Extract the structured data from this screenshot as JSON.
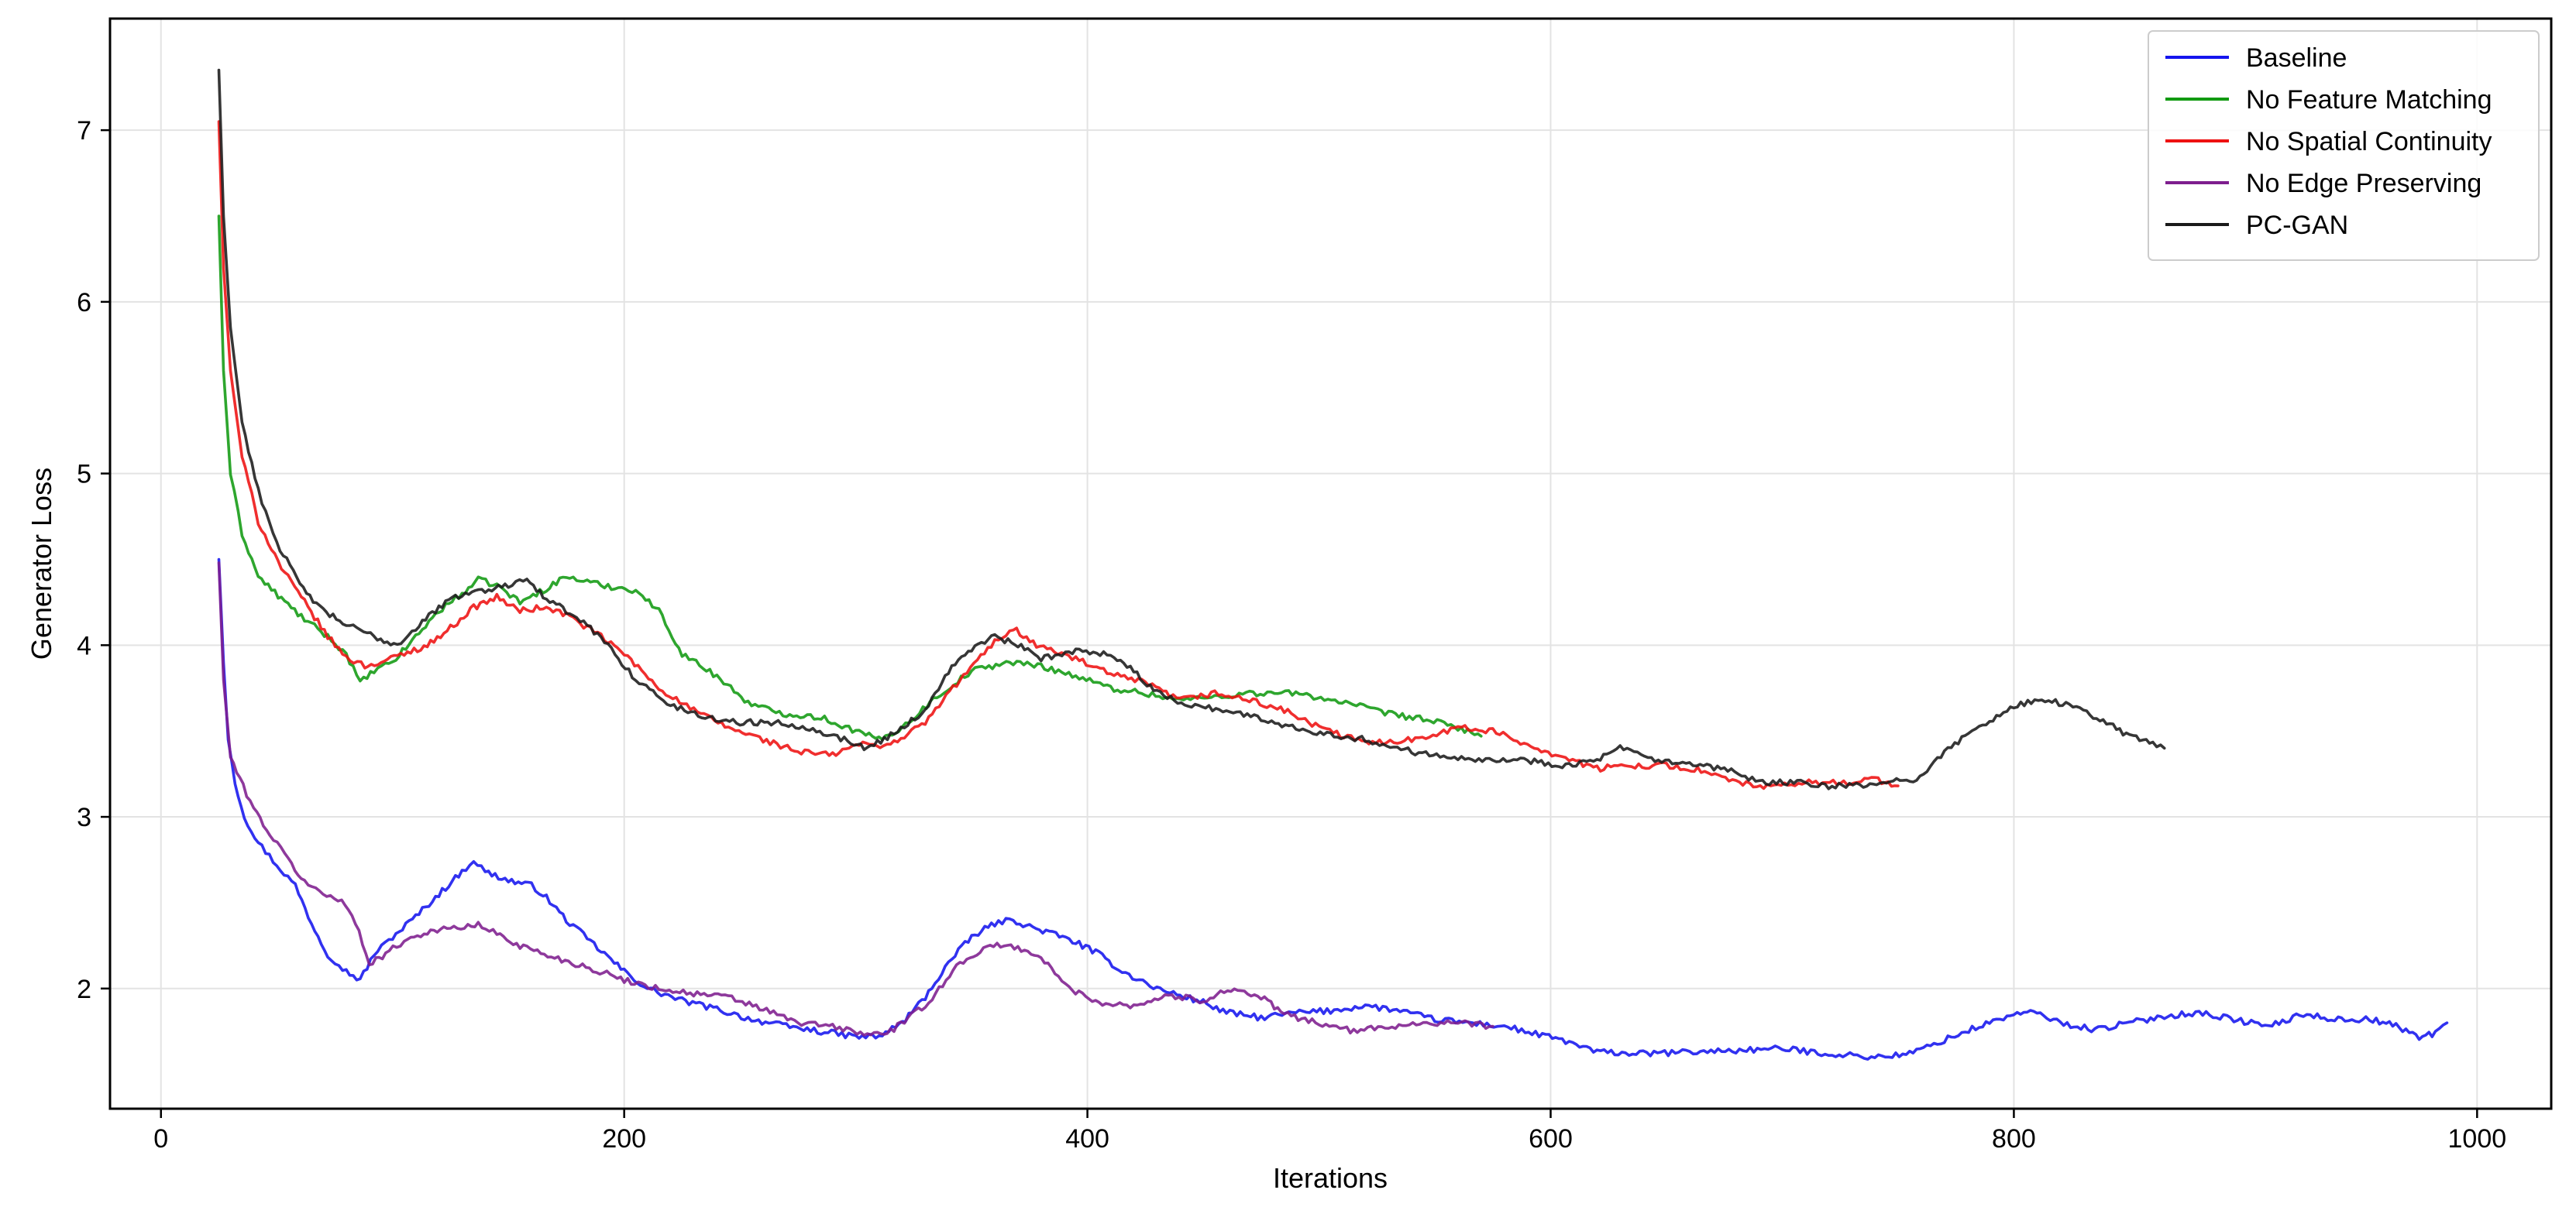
{
  "chart_data": {
    "type": "line",
    "title": "",
    "xlabel": "Iterations",
    "ylabel": "Generator Loss",
    "xlim": [
      -22,
      1032
    ],
    "ylim": [
      1.3,
      7.65
    ],
    "xticks": [
      0,
      200,
      400,
      600,
      800,
      1000
    ],
    "yticks": [
      2,
      3,
      4,
      5,
      6,
      7
    ],
    "grid": true,
    "legend_position": "top-right",
    "series": [
      {
        "name": "Baseline",
        "color": "#1515ee",
        "points": [
          [
            25,
            4.5
          ],
          [
            27,
            3.9
          ],
          [
            29,
            3.45
          ],
          [
            32,
            3.2
          ],
          [
            36,
            3.0
          ],
          [
            42,
            2.85
          ],
          [
            50,
            2.72
          ],
          [
            58,
            2.6
          ],
          [
            65,
            2.38
          ],
          [
            72,
            2.2
          ],
          [
            80,
            2.1
          ],
          [
            86,
            2.05
          ],
          [
            92,
            2.2
          ],
          [
            100,
            2.3
          ],
          [
            110,
            2.42
          ],
          [
            120,
            2.55
          ],
          [
            130,
            2.68
          ],
          [
            135,
            2.75
          ],
          [
            140,
            2.68
          ],
          [
            150,
            2.63
          ],
          [
            160,
            2.6
          ],
          [
            165,
            2.55
          ],
          [
            175,
            2.4
          ],
          [
            190,
            2.22
          ],
          [
            200,
            2.1
          ],
          [
            210,
            2.0
          ],
          [
            225,
            1.93
          ],
          [
            240,
            1.88
          ],
          [
            255,
            1.82
          ],
          [
            270,
            1.78
          ],
          [
            285,
            1.75
          ],
          [
            300,
            1.72
          ],
          [
            310,
            1.72
          ],
          [
            320,
            1.8
          ],
          [
            330,
            1.95
          ],
          [
            340,
            2.15
          ],
          [
            350,
            2.3
          ],
          [
            360,
            2.38
          ],
          [
            368,
            2.4
          ],
          [
            375,
            2.36
          ],
          [
            385,
            2.32
          ],
          [
            395,
            2.27
          ],
          [
            405,
            2.2
          ],
          [
            415,
            2.1
          ],
          [
            430,
            2.0
          ],
          [
            440,
            1.96
          ],
          [
            450,
            1.92
          ],
          [
            460,
            1.86
          ],
          [
            475,
            1.83
          ],
          [
            490,
            1.86
          ],
          [
            505,
            1.87
          ],
          [
            520,
            1.9
          ],
          [
            535,
            1.87
          ],
          [
            550,
            1.82
          ],
          [
            565,
            1.8
          ],
          [
            580,
            1.78
          ],
          [
            595,
            1.73
          ],
          [
            605,
            1.7
          ],
          [
            620,
            1.63
          ],
          [
            640,
            1.62
          ],
          [
            660,
            1.63
          ],
          [
            680,
            1.64
          ],
          [
            700,
            1.65
          ],
          [
            720,
            1.62
          ],
          [
            740,
            1.6
          ],
          [
            755,
            1.62
          ],
          [
            770,
            1.7
          ],
          [
            785,
            1.78
          ],
          [
            800,
            1.85
          ],
          [
            810,
            1.86
          ],
          [
            820,
            1.8
          ],
          [
            835,
            1.76
          ],
          [
            850,
            1.8
          ],
          [
            865,
            1.84
          ],
          [
            880,
            1.86
          ],
          [
            895,
            1.82
          ],
          [
            910,
            1.78
          ],
          [
            925,
            1.85
          ],
          [
            940,
            1.82
          ],
          [
            955,
            1.82
          ],
          [
            965,
            1.78
          ],
          [
            975,
            1.72
          ],
          [
            982,
            1.74
          ],
          [
            987,
            1.8
          ]
        ]
      },
      {
        "name": "No Feature Matching",
        "color": "#119a11",
        "points": [
          [
            25,
            6.5
          ],
          [
            27,
            5.6
          ],
          [
            30,
            5.0
          ],
          [
            35,
            4.65
          ],
          [
            42,
            4.4
          ],
          [
            52,
            4.27
          ],
          [
            62,
            4.15
          ],
          [
            72,
            4.05
          ],
          [
            80,
            3.95
          ],
          [
            86,
            3.78
          ],
          [
            92,
            3.85
          ],
          [
            100,
            3.9
          ],
          [
            110,
            4.05
          ],
          [
            120,
            4.2
          ],
          [
            130,
            4.3
          ],
          [
            137,
            4.38
          ],
          [
            145,
            4.35
          ],
          [
            155,
            4.25
          ],
          [
            165,
            4.32
          ],
          [
            175,
            4.4
          ],
          [
            190,
            4.35
          ],
          [
            205,
            4.32
          ],
          [
            215,
            4.2
          ],
          [
            225,
            3.95
          ],
          [
            240,
            3.82
          ],
          [
            255,
            3.65
          ],
          [
            270,
            3.6
          ],
          [
            285,
            3.58
          ],
          [
            300,
            3.5
          ],
          [
            310,
            3.45
          ],
          [
            320,
            3.52
          ],
          [
            335,
            3.7
          ],
          [
            350,
            3.85
          ],
          [
            365,
            3.9
          ],
          [
            380,
            3.88
          ],
          [
            395,
            3.82
          ],
          [
            410,
            3.75
          ],
          [
            425,
            3.72
          ],
          [
            440,
            3.68
          ],
          [
            455,
            3.7
          ],
          [
            470,
            3.72
          ],
          [
            490,
            3.72
          ],
          [
            510,
            3.67
          ],
          [
            530,
            3.6
          ],
          [
            545,
            3.57
          ],
          [
            560,
            3.52
          ],
          [
            570,
            3.47
          ]
        ]
      },
      {
        "name": "No Spatial Continuity",
        "color": "#ee1111",
        "points": [
          [
            25,
            7.05
          ],
          [
            27,
            6.2
          ],
          [
            30,
            5.6
          ],
          [
            35,
            5.1
          ],
          [
            42,
            4.72
          ],
          [
            52,
            4.45
          ],
          [
            62,
            4.25
          ],
          [
            72,
            4.05
          ],
          [
            80,
            3.93
          ],
          [
            88,
            3.88
          ],
          [
            95,
            3.9
          ],
          [
            105,
            3.95
          ],
          [
            115,
            4.0
          ],
          [
            125,
            4.1
          ],
          [
            135,
            4.22
          ],
          [
            145,
            4.28
          ],
          [
            155,
            4.2
          ],
          [
            165,
            4.22
          ],
          [
            175,
            4.18
          ],
          [
            190,
            4.05
          ],
          [
            200,
            3.95
          ],
          [
            215,
            3.75
          ],
          [
            230,
            3.62
          ],
          [
            245,
            3.52
          ],
          [
            260,
            3.45
          ],
          [
            275,
            3.38
          ],
          [
            290,
            3.36
          ],
          [
            300,
            3.42
          ],
          [
            315,
            3.42
          ],
          [
            330,
            3.55
          ],
          [
            345,
            3.8
          ],
          [
            360,
            4.02
          ],
          [
            368,
            4.1
          ],
          [
            378,
            4.0
          ],
          [
            395,
            3.92
          ],
          [
            410,
            3.83
          ],
          [
            425,
            3.78
          ],
          [
            440,
            3.68
          ],
          [
            455,
            3.72
          ],
          [
            470,
            3.68
          ],
          [
            485,
            3.62
          ],
          [
            500,
            3.52
          ],
          [
            520,
            3.43
          ],
          [
            540,
            3.45
          ],
          [
            560,
            3.52
          ],
          [
            575,
            3.5
          ],
          [
            590,
            3.42
          ],
          [
            605,
            3.35
          ],
          [
            620,
            3.28
          ],
          [
            635,
            3.3
          ],
          [
            650,
            3.3
          ],
          [
            665,
            3.27
          ],
          [
            680,
            3.2
          ],
          [
            695,
            3.17
          ],
          [
            710,
            3.2
          ],
          [
            725,
            3.2
          ],
          [
            740,
            3.22
          ],
          [
            750,
            3.18
          ]
        ]
      },
      {
        "name": "No Edge Preserving",
        "color": "#7e1e8e",
        "points": [
          [
            25,
            4.48
          ],
          [
            27,
            3.8
          ],
          [
            30,
            3.35
          ],
          [
            34,
            3.22
          ],
          [
            40,
            3.05
          ],
          [
            47,
            2.9
          ],
          [
            55,
            2.75
          ],
          [
            62,
            2.62
          ],
          [
            70,
            2.55
          ],
          [
            78,
            2.52
          ],
          [
            84,
            2.38
          ],
          [
            90,
            2.15
          ],
          [
            97,
            2.2
          ],
          [
            105,
            2.28
          ],
          [
            115,
            2.33
          ],
          [
            125,
            2.35
          ],
          [
            137,
            2.37
          ],
          [
            145,
            2.32
          ],
          [
            155,
            2.25
          ],
          [
            170,
            2.18
          ],
          [
            185,
            2.12
          ],
          [
            200,
            2.05
          ],
          [
            215,
            2.0
          ],
          [
            230,
            1.97
          ],
          [
            245,
            1.95
          ],
          [
            260,
            1.88
          ],
          [
            275,
            1.8
          ],
          [
            290,
            1.78
          ],
          [
            305,
            1.73
          ],
          [
            315,
            1.75
          ],
          [
            330,
            1.9
          ],
          [
            345,
            2.15
          ],
          [
            358,
            2.25
          ],
          [
            370,
            2.24
          ],
          [
            380,
            2.18
          ],
          [
            392,
            2.0
          ],
          [
            405,
            1.92
          ],
          [
            420,
            1.9
          ],
          [
            435,
            1.96
          ],
          [
            450,
            1.93
          ],
          [
            462,
            2.0
          ],
          [
            475,
            1.95
          ],
          [
            485,
            1.85
          ],
          [
            500,
            1.8
          ],
          [
            515,
            1.75
          ],
          [
            530,
            1.78
          ],
          [
            545,
            1.8
          ],
          [
            560,
            1.8
          ],
          [
            575,
            1.78
          ]
        ]
      },
      {
        "name": "PC-GAN",
        "color": "#1a1a1a",
        "points": [
          [
            25,
            7.35
          ],
          [
            27,
            6.5
          ],
          [
            30,
            5.85
          ],
          [
            35,
            5.3
          ],
          [
            42,
            4.9
          ],
          [
            50,
            4.6
          ],
          [
            60,
            4.35
          ],
          [
            70,
            4.2
          ],
          [
            80,
            4.12
          ],
          [
            92,
            4.05
          ],
          [
            102,
            4.0
          ],
          [
            110,
            4.1
          ],
          [
            120,
            4.22
          ],
          [
            130,
            4.3
          ],
          [
            140,
            4.32
          ],
          [
            150,
            4.35
          ],
          [
            158,
            4.4
          ],
          [
            165,
            4.28
          ],
          [
            175,
            4.2
          ],
          [
            190,
            4.05
          ],
          [
            205,
            3.8
          ],
          [
            220,
            3.65
          ],
          [
            235,
            3.58
          ],
          [
            250,
            3.55
          ],
          [
            265,
            3.55
          ],
          [
            280,
            3.52
          ],
          [
            295,
            3.45
          ],
          [
            305,
            3.4
          ],
          [
            318,
            3.5
          ],
          [
            330,
            3.62
          ],
          [
            340,
            3.85
          ],
          [
            350,
            3.98
          ],
          [
            360,
            4.05
          ],
          [
            370,
            4.0
          ],
          [
            380,
            3.92
          ],
          [
            395,
            3.97
          ],
          [
            410,
            3.95
          ],
          [
            420,
            3.85
          ],
          [
            430,
            3.72
          ],
          [
            445,
            3.65
          ],
          [
            460,
            3.62
          ],
          [
            475,
            3.57
          ],
          [
            490,
            3.52
          ],
          [
            505,
            3.48
          ],
          [
            520,
            3.45
          ],
          [
            540,
            3.38
          ],
          [
            560,
            3.35
          ],
          [
            575,
            3.33
          ],
          [
            590,
            3.33
          ],
          [
            605,
            3.3
          ],
          [
            620,
            3.33
          ],
          [
            630,
            3.4
          ],
          [
            645,
            3.33
          ],
          [
            660,
            3.3
          ],
          [
            675,
            3.28
          ],
          [
            690,
            3.2
          ],
          [
            705,
            3.2
          ],
          [
            720,
            3.18
          ],
          [
            735,
            3.18
          ],
          [
            745,
            3.2
          ],
          [
            758,
            3.22
          ],
          [
            770,
            3.38
          ],
          [
            785,
            3.52
          ],
          [
            800,
            3.65
          ],
          [
            815,
            3.68
          ],
          [
            830,
            3.62
          ],
          [
            840,
            3.55
          ],
          [
            850,
            3.47
          ],
          [
            860,
            3.43
          ],
          [
            865,
            3.4
          ]
        ]
      }
    ]
  }
}
